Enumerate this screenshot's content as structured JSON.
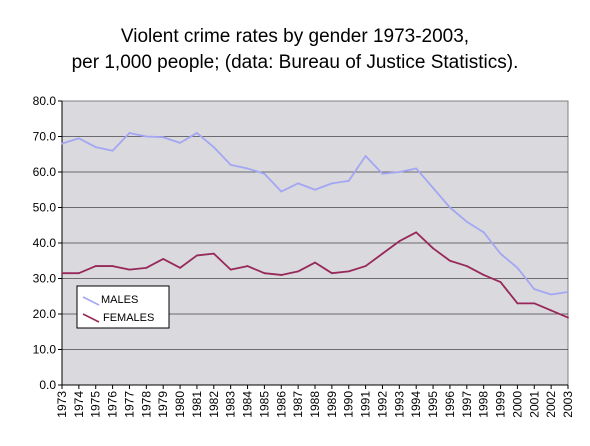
{
  "chart_data": {
    "type": "line",
    "title_lines": [
      "Violent crime rates by gender 1973-2003,",
      "per 1,000 people; (data: Bureau of Justice Statistics)."
    ],
    "xlabel": "",
    "ylabel": "",
    "ylim": [
      0,
      80
    ],
    "yticks": [
      "0.0",
      "10.0",
      "20.0",
      "30.0",
      "40.0",
      "50.0",
      "60.0",
      "70.0",
      "80.0"
    ],
    "x": [
      "1973",
      "1974",
      "1975",
      "1976",
      "1977",
      "1978",
      "1979",
      "1980",
      "1981",
      "1982",
      "1983",
      "1984",
      "1985",
      "1986",
      "1987",
      "1988",
      "1989",
      "1990",
      "1991",
      "1992",
      "1993",
      "1994",
      "1995",
      "1996",
      "1997",
      "1998",
      "1999",
      "2000",
      "2001",
      "2002",
      "2003"
    ],
    "grid": true,
    "legend_position": "bottom-left",
    "background_color": "#D9D9DE",
    "series": [
      {
        "name": "MALES",
        "color": "#A3A7F2",
        "values": [
          68.0,
          69.5,
          67.0,
          66.0,
          71.0,
          70.0,
          69.8,
          68.2,
          71.0,
          67.0,
          62.0,
          61.0,
          59.5,
          54.5,
          56.8,
          55.0,
          56.8,
          57.5,
          64.5,
          59.5,
          60.0,
          61.0,
          55.5,
          50.0,
          46.0,
          43.0,
          37.0,
          33.0,
          27.0,
          25.5,
          26.2
        ]
      },
      {
        "name": "FEMALES",
        "color": "#98285A",
        "values": [
          31.5,
          31.5,
          33.5,
          33.5,
          32.5,
          33.0,
          35.5,
          33.0,
          36.5,
          37.0,
          32.5,
          33.5,
          31.5,
          31.0,
          32.0,
          34.5,
          31.5,
          32.0,
          33.5,
          37.0,
          40.5,
          43.0,
          38.5,
          35.0,
          33.5,
          31.0,
          29.0,
          23.0,
          23.0,
          21.0,
          19.0
        ]
      }
    ]
  }
}
